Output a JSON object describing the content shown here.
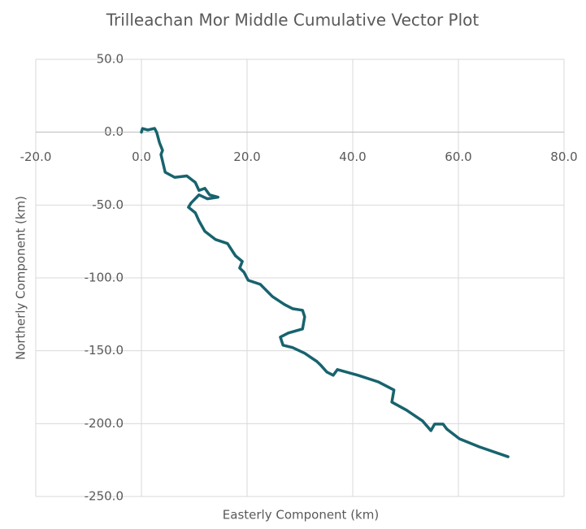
{
  "chart_data": {
    "type": "line",
    "title": "Trilleachan Mor Middle Cumulative Vector Plot",
    "x_label": "Easterly Component (km)",
    "y_label": "Northerly Component (km)",
    "xlim": [
      -20,
      80
    ],
    "ylim": [
      -250,
      50
    ],
    "xticks": [
      {
        "value": -20,
        "label": "-20.0"
      },
      {
        "value": 0,
        "label": "0.0"
      },
      {
        "value": 20,
        "label": "20.0"
      },
      {
        "value": 40,
        "label": "40.0"
      },
      {
        "value": 60,
        "label": "60.0"
      },
      {
        "value": 80,
        "label": "80.0"
      }
    ],
    "yticks": [
      {
        "value": 50,
        "label": "50.0"
      },
      {
        "value": 0,
        "label": "0.0"
      },
      {
        "value": -50,
        "label": "-50.0"
      },
      {
        "value": -100,
        "label": "-100.0"
      },
      {
        "value": -150,
        "label": "-150.0"
      },
      {
        "value": -200,
        "label": "-200.0"
      },
      {
        "value": -250,
        "label": "-250.0"
      }
    ],
    "grid": true,
    "series": [
      {
        "color": "#17636e",
        "x": [
          0,
          0.2,
          1.2,
          2.5,
          2.9,
          3.4,
          4,
          3.7,
          4.5,
          6.3,
          8.6,
          10.2,
          10.9,
          12,
          12.9,
          14.5,
          12.5,
          10.9,
          9.4,
          8.9,
          10.2,
          10.9,
          12,
          14,
          16.3,
          17.8,
          19.1,
          18.6,
          19.4,
          20.2,
          22.5,
          24.8,
          27.1,
          28.6,
          30.5,
          30.9,
          30.5,
          27.8,
          26.3,
          26.8,
          28.6,
          30.9,
          33.2,
          34,
          35.1,
          36.3,
          37.1,
          41,
          44.8,
          47.8,
          47.4,
          50.2,
          53.2,
          54.8,
          55.5,
          57.1,
          57.8,
          60.2,
          64,
          69.4
        ],
        "values": [
          0,
          2.5,
          1.5,
          2.6,
          -0.2,
          -7,
          -12.5,
          -15.3,
          -27.5,
          -31,
          -30,
          -34.5,
          -40,
          -38.5,
          -43,
          -44.6,
          -45.7,
          -43,
          -48.6,
          -51.5,
          -55.3,
          -60.9,
          -68,
          -73.6,
          -76.4,
          -84.8,
          -88.7,
          -93.2,
          -96,
          -101.6,
          -104.4,
          -112.8,
          -118.3,
          -121.1,
          -122.2,
          -126.7,
          -135,
          -137.8,
          -140.6,
          -146.2,
          -147.8,
          -151.7,
          -157.3,
          -160.1,
          -164.6,
          -166.8,
          -162.9,
          -166.8,
          -171.3,
          -176.9,
          -185.2,
          -190.8,
          -198.1,
          -204.8,
          -200.3,
          -200.3,
          -203.7,
          -210.4,
          -216,
          -222.7
        ]
      }
    ]
  }
}
